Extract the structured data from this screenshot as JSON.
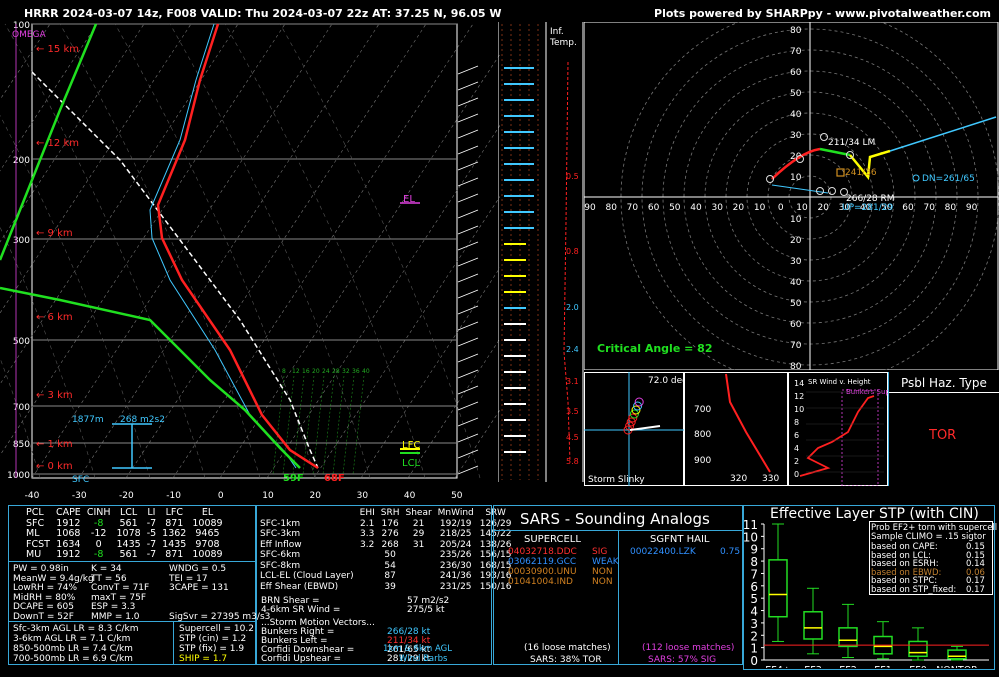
{
  "header": {
    "title": "HRRR 2024-03-07 14z, F008  VALID: Thu 2024-03-07 22z  AT: 37.25 N, 96.05 W",
    "credit": "Plots powered by SHARPpy - www.pivotalweather.com"
  },
  "skewt": {
    "omega_label": "OMEGA",
    "pressure_ticks": [
      "100",
      "200",
      "300",
      "500",
      "700",
      "850",
      "1000"
    ],
    "temp_ticks": [
      "-40",
      "-30",
      "-20",
      "-10",
      "0",
      "10",
      "20",
      "30",
      "40",
      "50"
    ],
    "height_labels": [
      "15 km",
      "12 km",
      "9 km",
      "6 km",
      "3 km",
      "1 km",
      "0 km"
    ],
    "sfc_label": "SFC",
    "lfc_label": "LFC",
    "lcl_label": "LCL",
    "el_label": "EL",
    "effective_layer": {
      "height": "1877m",
      "srh": "268 m2s2"
    },
    "surface_dewpoint": "59F",
    "surface_temp": "68F",
    "mixing_ratio_labels": [
      "8",
      "12",
      "16",
      "20",
      "24",
      "28",
      "32",
      "36",
      "40"
    ]
  },
  "inflow": {
    "title_line1": "Inf.",
    "title_line2": "Temp.",
    "labels": [
      "0.5",
      "0.8",
      "2.0",
      "2.4",
      "3.1",
      "3.5",
      "4.5",
      "5.8"
    ]
  },
  "hodograph": {
    "ring_labels": [
      "10",
      "20",
      "30",
      "40",
      "50",
      "60",
      "70",
      "80"
    ],
    "axis_labels": [
      "90",
      "80",
      "70",
      "60",
      "50",
      "40",
      "30",
      "20",
      "10",
      "0",
      "10",
      "20",
      "30",
      "40",
      "50",
      "60",
      "70",
      "80",
      "90"
    ],
    "lm_label": "211/34 LM",
    "mean_label": "241/36",
    "rm_label": "266/28 RM",
    "up_label": "UP=281/29",
    "dn_label": "DN=261/65",
    "critical_angle_label": "Critical Angle = 82"
  },
  "storm_slinky": {
    "angle": "72.0 deg",
    "label": "Storm Slinky"
  },
  "theta_panel": {
    "y_ticks": [
      "700",
      "800",
      "900"
    ],
    "x_ticks": [
      "320",
      "330"
    ]
  },
  "sr_wind": {
    "title": "SR Wind v. Height",
    "supercell_label": "Bunkers Supercell",
    "y_ticks": [
      "14",
      "12",
      "10",
      "8",
      "6",
      "4",
      "2",
      "0"
    ]
  },
  "hazard": {
    "title": "Psbl Haz. Type",
    "value": "TOR"
  },
  "thermo_table": {
    "headers": [
      "PCL",
      "CAPE",
      "CINH",
      "LCL",
      "LI",
      "LFC",
      "EL"
    ],
    "rows": [
      [
        "SFC",
        "1912",
        "-8",
        "561",
        "-7",
        "871",
        "10089"
      ],
      [
        "ML",
        "1068",
        "-12",
        "1078",
        "-5",
        "1362",
        "9465"
      ],
      [
        "FCST",
        "1634",
        "0",
        "1435",
        "-7",
        "1435",
        "9708"
      ],
      [
        "MU",
        "1912",
        "-8",
        "561",
        "-7",
        "871",
        "10089"
      ]
    ],
    "indices": [
      [
        "PW = 0.98in",
        "K = 34",
        "WNDG = 0.5"
      ],
      [
        "MeanW = 9.4g/kg",
        "TT = 56",
        "TEI = 17"
      ],
      [
        "LowRH = 74%",
        "ConvT = 71F",
        "3CAPE = 131"
      ],
      [
        "MidRH = 80%",
        "maxT = 75F",
        ""
      ],
      [
        "DCAPE = 605",
        "ESP = 3.3",
        ""
      ],
      [
        "DownT = 52F",
        "MMP = 1.0",
        "SigSvr = 27395 m3/s3"
      ]
    ],
    "lapse_rates": [
      "Sfc-3km AGL LR = 8.3 C/km",
      "3-6km AGL LR = 7.1 C/km",
      "850-500mb LR = 7.4 C/km",
      "700-500mb LR = 6.9 C/km"
    ],
    "composites": [
      "Supercell = 10.2",
      "STP (cin) = 1.2",
      "STP (fix) = 1.9",
      "SHIP = 1.7"
    ]
  },
  "kinematic_table": {
    "headers": [
      "",
      "EHI",
      "SRH",
      "Shear",
      "MnWind",
      "SRW"
    ],
    "rows": [
      [
        "SFC-1km",
        "2.1",
        "176",
        "21",
        "192/19",
        "126/29"
      ],
      [
        "SFC-3km",
        "3.3",
        "276",
        "29",
        "218/25",
        "145/22"
      ],
      [
        "Eff Inflow",
        "3.2",
        "268",
        "31",
        "205/24",
        "138/26"
      ],
      [
        "",
        "",
        "",
        "",
        "",
        ""
      ],
      [
        "SFC-6km",
        "",
        "50",
        "",
        "235/26",
        "156/15"
      ],
      [
        "SFC-8km",
        "",
        "54",
        "",
        "236/30",
        "168/15"
      ],
      [
        "LCL-EL (Cloud Layer)",
        "",
        "87",
        "",
        "241/36",
        "193/16"
      ],
      [
        "Eff Shear (EBWD)",
        "",
        "39",
        "",
        "231/25",
        "150/16"
      ]
    ],
    "brn_shear": [
      "BRN Shear =",
      "57 m2/s2"
    ],
    "sr_wind_46": [
      "4-6km SR Wind =",
      "275/5 kt"
    ],
    "vectors_title": "...Storm Motion Vectors...",
    "vectors": [
      [
        "Bunkers Right =",
        "266/28 kt"
      ],
      [
        "Bunkers Left =",
        "211/34 kt"
      ],
      [
        "Corfidi Downshear =",
        "261/65 kt"
      ],
      [
        "Corfidi Upshear =",
        "281/29 kt"
      ]
    ],
    "barb_note_line1": "1km & 6km AGL",
    "barb_note_line2": "Wind Barbs"
  },
  "sars": {
    "title": "SARS - Sounding Analogs",
    "supercell_title": "SUPERCELL",
    "hail_title": "SGFNT HAIL",
    "supercell_matches": [
      {
        "id": "04032718.DDC",
        "type": "SIG",
        "color": "#ff3030"
      },
      {
        "id": "03062119.GCC",
        "type": "WEAK",
        "color": "#3090ff"
      },
      {
        "id": "00030900.UNU",
        "type": "NON",
        "color": "#d08020"
      },
      {
        "id": "01041004.IND",
        "type": "NON",
        "color": "#d08020"
      }
    ],
    "hail_matches": [
      {
        "id": "00022400.LZK",
        "value": "0.75"
      }
    ],
    "supercell_loose": "(16 loose matches)",
    "hail_loose": "(112 loose matches)",
    "supercell_summary": "SARS: 38% TOR",
    "hail_summary": "SARS: 57% SIG"
  },
  "stp_panel": {
    "title": "Effective Layer STP (with CIN)",
    "prob_title": "Prob EF2+ torn with supercell",
    "prob_sample": "Sample CLIMO = .15 sigtor",
    "prob_rows": [
      {
        "label": "based on CAPE:",
        "value": "0.15",
        "color": "#ffffff"
      },
      {
        "label": "based on LCL:",
        "value": "0.15",
        "color": "#ffffff"
      },
      {
        "label": "based on ESRH:",
        "value": "0.14",
        "color": "#ffffff"
      },
      {
        "label": "based on EBWD:",
        "value": "0.06",
        "color": "#c08030"
      },
      {
        "label": "based on STPC:",
        "value": "0.17",
        "color": "#ffffff"
      },
      {
        "label": "based on STP_fixed:",
        "value": "0.17",
        "color": "#ffffff"
      }
    ]
  },
  "chart_data": {
    "type": "box",
    "title": "Effective Layer STP (with CIN)",
    "categories": [
      "EF4+",
      "EF3",
      "EF2",
      "EF1",
      "EF0",
      "NONTOR"
    ],
    "y_ticks": [
      "0",
      "1",
      "2",
      "3",
      "4",
      "5",
      "6",
      "7",
      "8",
      "9",
      "10",
      "11"
    ],
    "ylim": [
      0,
      11
    ],
    "boxes": [
      {
        "min": 1.5,
        "q1": 3.5,
        "median": 5.3,
        "q3": 8.1,
        "max": 11.0
      },
      {
        "min": 0.5,
        "q1": 1.7,
        "median": 2.6,
        "q3": 3.9,
        "max": 5.8
      },
      {
        "min": 0.2,
        "q1": 1.1,
        "median": 1.6,
        "q3": 2.6,
        "max": 4.5
      },
      {
        "min": 0.1,
        "q1": 0.5,
        "median": 1.1,
        "q3": 1.9,
        "max": 3.1
      },
      {
        "min": 0.0,
        "q1": 0.3,
        "median": 0.6,
        "q3": 1.5,
        "max": 2.6
      },
      {
        "min": 0.0,
        "q1": 0.1,
        "median": 0.3,
        "q3": 0.8,
        "max": 1.1
      }
    ],
    "current_value": 1.2,
    "colors": {
      "box": "#22dd22",
      "median": "#ffff00",
      "current_line": "#ff2222"
    }
  },
  "colors": {
    "accent": "#38a8d8",
    "temp": "#ff2020",
    "dewp": "#20e020",
    "wetbulb": "#40c8ff",
    "parcel": "#ffffff"
  }
}
